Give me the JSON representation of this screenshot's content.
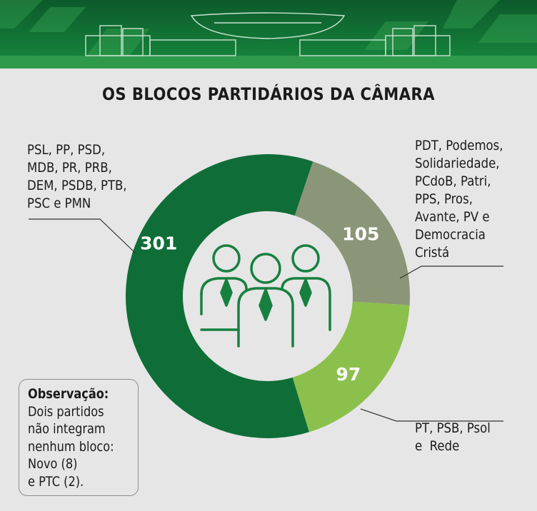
{
  "title": "OS BLOCOS PARTIDÁRIOS DA CÂMARA",
  "colors": {
    "banner_dark": "#0c5a2a",
    "banner_light": "#2f9a4c",
    "dark_green": "#0f6e37",
    "gray_green": "#8a9677",
    "light_green": "#8cc04d",
    "background": "#e6e6e6",
    "icon_green": "#17803f"
  },
  "chart_data": {
    "type": "pie",
    "style": "donut",
    "slices": [
      {
        "label": "PSL, PP, PSD, MDB, PR, PRB, DEM, PSDB, PTB, PSC e PMN",
        "value": 301,
        "value_label": "301",
        "color": "#0f6e37"
      },
      {
        "label": "PDT, Podemos, Solidariedade, PCdoB, Patri, PPS, Pros, Avante, PV e Democracia Cristá",
        "value": 105,
        "value_label": "105",
        "color": "#8a9677"
      },
      {
        "label": "PT, PSB, Psol e  Rede",
        "value": 97,
        "value_label": "97",
        "color": "#8cc04d"
      }
    ],
    "center_icon": "three-people-icon"
  },
  "labels": {
    "left": [
      "PSL, PP, PSD,",
      "MDB, PR, PRB,",
      "DEM, PSDB, PTB,",
      "PSC e PMN"
    ],
    "right": [
      "PDT, Podemos,",
      "Solidariedade,",
      "PCdoB, Patri,",
      "PPS, Pros,",
      "Avante, PV e",
      "Democracia",
      "Cristá"
    ],
    "bottom": [
      "PT, PSB, Psol",
      "e  Rede"
    ]
  },
  "note": {
    "title": "Observação:",
    "lines": [
      "Dois partidos",
      "não integram",
      "nenhum bloco:",
      "Novo (8)",
      "e PTC (2)."
    ]
  },
  "banner_icon": "congress-building-icon"
}
